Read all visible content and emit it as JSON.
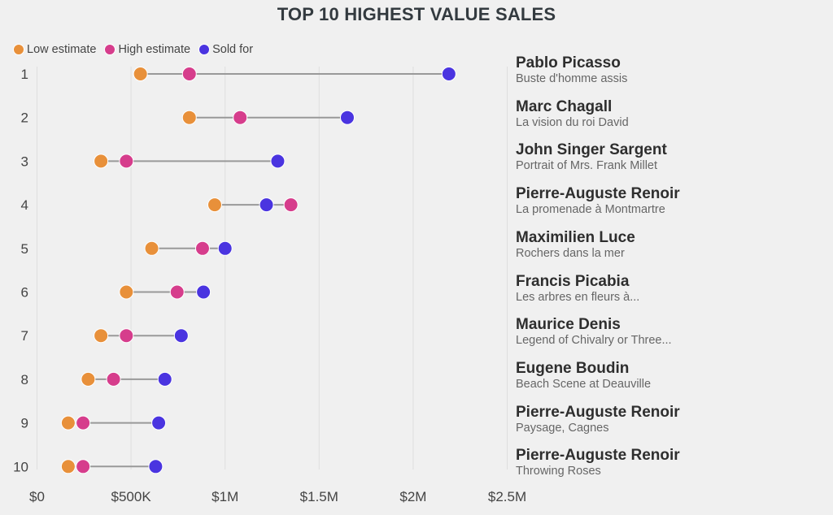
{
  "chart_data": {
    "type": "dumbbell",
    "title": "TOP 10 HIGHEST VALUE SALES",
    "xlabel": "",
    "ylabel": "",
    "xlim": [
      0,
      2500000
    ],
    "x_ticks": [
      0,
      500000,
      1000000,
      1500000,
      2000000,
      2500000
    ],
    "x_tick_labels": [
      "$0",
      "$500K",
      "$1M",
      "$1.5M",
      "$2M",
      "$2.5M"
    ],
    "grid": true,
    "legend_position": "top-left",
    "series": [
      {
        "key": "low",
        "name": "Low estimate",
        "color": "#E8903A"
      },
      {
        "key": "high",
        "name": "High estimate",
        "color": "#D63D8C"
      },
      {
        "key": "sold",
        "name": "Sold for",
        "color": "#4A34E0"
      }
    ],
    "rows": [
      {
        "rank": "1",
        "artist": "Pablo Picasso",
        "artwork": "Buste d'homme assis",
        "low": 550000,
        "high": 810000,
        "sold": 2190000
      },
      {
        "rank": "2",
        "artist": "Marc Chagall",
        "artwork": "La vision du roi David",
        "low": 810000,
        "high": 1080000,
        "sold": 1650000
      },
      {
        "rank": "3",
        "artist": "John Singer Sargent",
        "artwork": "Portrait of Mrs. Frank Millet",
        "low": 340000,
        "high": 475000,
        "sold": 1280000
      },
      {
        "rank": "4",
        "artist": "Pierre-Auguste Renoir",
        "artwork": "La promenade à Montmartre",
        "low": 945000,
        "high": 1350000,
        "sold": 1220000
      },
      {
        "rank": "5",
        "artist": "Maximilien Luce",
        "artwork": "Rochers dans la mer",
        "low": 610000,
        "high": 880000,
        "sold": 1000000
      },
      {
        "rank": "6",
        "artist": "Francis Picabia",
        "artwork": "Les arbres en fleurs à...",
        "low": 475000,
        "high": 745000,
        "sold": 885000
      },
      {
        "rank": "7",
        "artist": "Maurice Denis",
        "artwork": "Legend of Chivalry or Three...",
        "low": 340000,
        "high": 475000,
        "sold": 767000
      },
      {
        "rank": "8",
        "artist": "Eugene Boudin",
        "artwork": "Beach Scene at Deauville",
        "low": 272000,
        "high": 407000,
        "sold": 680000
      },
      {
        "rank": "9",
        "artist": "Pierre-Auguste Renoir",
        "artwork": "Paysage, Cagnes",
        "low": 166000,
        "high": 245000,
        "sold": 647000
      },
      {
        "rank": "10",
        "artist": "Pierre-Auguste Renoir",
        "artwork": "Throwing Roses",
        "low": 166000,
        "high": 245000,
        "sold": 631000
      }
    ]
  }
}
